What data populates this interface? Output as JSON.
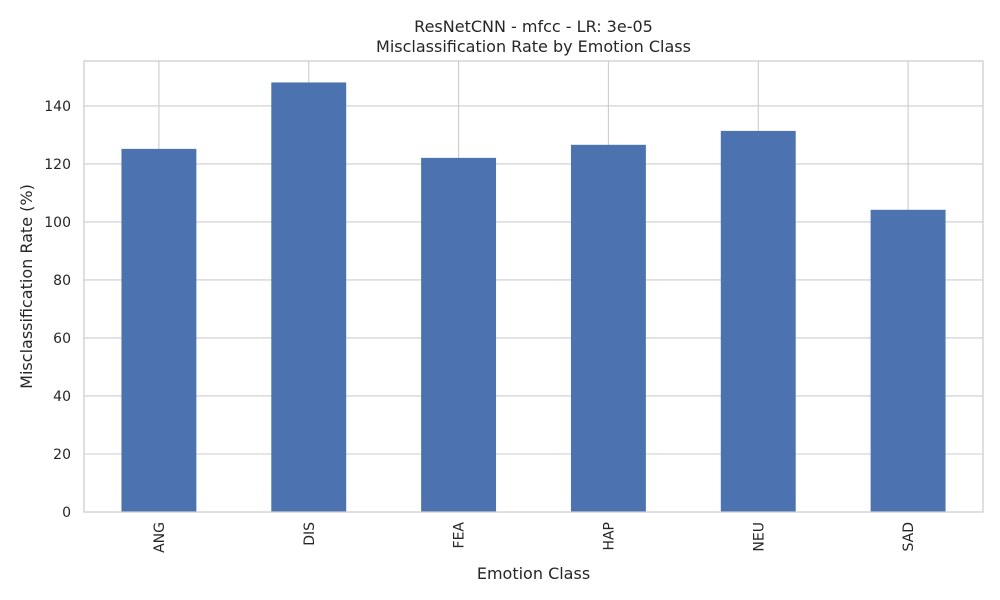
{
  "chart_data": {
    "type": "bar",
    "title": "ResNetCNN - mfcc - LR: 3e-05",
    "subtitle": "Misclassification Rate by Emotion Class",
    "xlabel": "Emotion Class",
    "ylabel": "Misclassification Rate (%)",
    "categories": [
      "ANG",
      "DIS",
      "FEA",
      "HAP",
      "NEU",
      "SAD"
    ],
    "values": [
      125.2,
      148.1,
      122.1,
      126.6,
      131.4,
      104.2
    ],
    "ylim": [
      0,
      155.5
    ],
    "yticks": [
      0,
      20,
      40,
      60,
      80,
      100,
      120,
      140
    ],
    "grid": true,
    "bar_color": "#4c72b0"
  }
}
